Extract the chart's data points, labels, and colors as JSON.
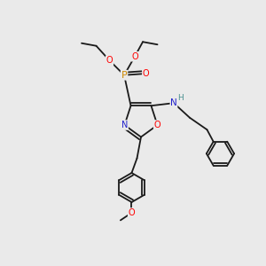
{
  "bg_color": "#eaeaea",
  "bond_color": "#1a1a1a",
  "atom_colors": {
    "O": "#ff0000",
    "N": "#2222cc",
    "P": "#cc8800",
    "H": "#4a9090",
    "C": "#1a1a1a"
  },
  "figsize": [
    3.0,
    3.0
  ],
  "dpi": 100
}
